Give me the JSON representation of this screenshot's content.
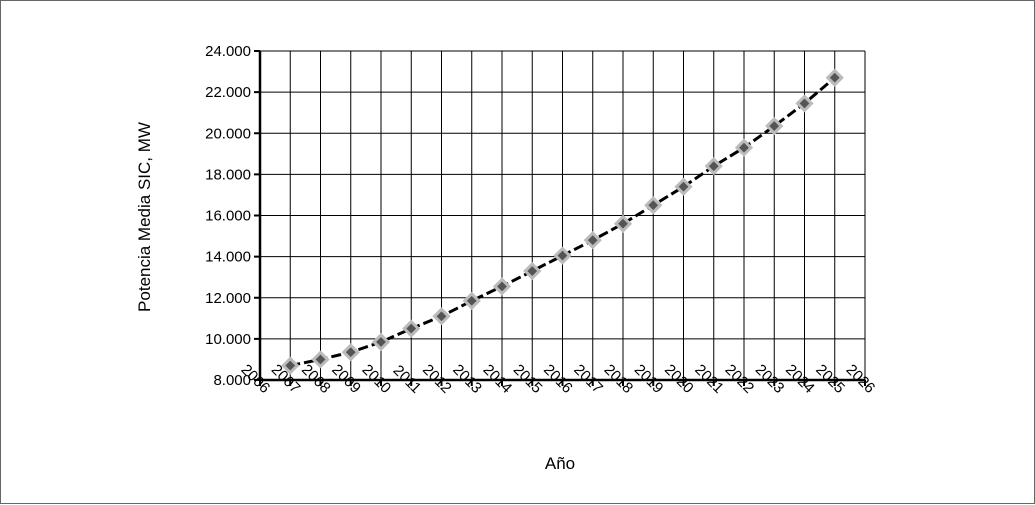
{
  "chart_data": {
    "type": "line",
    "title": "",
    "xlabel": "Año",
    "ylabel": "Potencia Media SIC, MW",
    "xlim": [
      2006,
      2026
    ],
    "ylim": [
      8000,
      24000
    ],
    "y_ticks": [
      8000,
      10000,
      12000,
      14000,
      16000,
      18000,
      20000,
      22000,
      24000
    ],
    "y_tick_labels": [
      "8.000",
      "10.000",
      "12.000",
      "14.000",
      "16.000",
      "18.000",
      "20.000",
      "22.000",
      "24.000"
    ],
    "x_tick_labels": [
      "2006",
      "2007",
      "2008",
      "2009",
      "2010",
      "2011",
      "2012",
      "2013",
      "2014",
      "2015",
      "2016",
      "2017",
      "2018",
      "2019",
      "2020",
      "2021",
      "2022",
      "2023",
      "2024",
      "2025",
      "2026"
    ],
    "grid": true,
    "legend": "none",
    "series": [
      {
        "x": [
          2007,
          2008,
          2009,
          2010,
          2011,
          2012,
          2013,
          2014,
          2015,
          2016,
          2017,
          2018,
          2019,
          2020,
          2021,
          2022,
          2023,
          2024,
          2025
        ],
        "y": [
          8700,
          9000,
          9350,
          9850,
          10500,
          11100,
          11850,
          12550,
          13300,
          14050,
          14800,
          15600,
          16500,
          17400,
          18400,
          19300,
          20350,
          21450,
          22700
        ],
        "line_color": "#000000",
        "line_style": "dashed",
        "marker": "diamond",
        "marker_fill": "#555555",
        "marker_edge": "#bbbbbb"
      }
    ]
  }
}
